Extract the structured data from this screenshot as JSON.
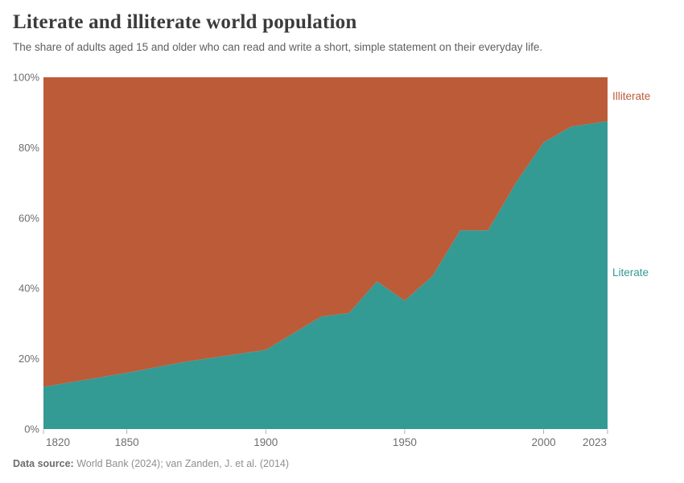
{
  "header": {
    "title": "Literate and illiterate world population",
    "subtitle": "The share of adults aged 15 and older who can read and write a short, simple statement on their everyday life."
  },
  "legend": {
    "illiterate_label": "Illiterate",
    "literate_label": "Literate"
  },
  "footer": {
    "source_label": "Data source:",
    "source_text": " World Bank (2024); van Zanden, J. et al. (2014)"
  },
  "colors": {
    "literate_fill": "#349a94",
    "illiterate_fill": "#bc5b38",
    "axis_text": "#6e6e6e",
    "tick_mark": "#b0b0b0",
    "title_text": "#3b3b3b",
    "subtitle_text": "#5f5f5f"
  },
  "chart_data": {
    "type": "area",
    "stacked": true,
    "title": "Literate and illiterate world population",
    "xlabel": "",
    "ylabel": "",
    "xlim": [
      1820,
      2023
    ],
    "ylim": [
      0,
      100
    ],
    "grid": false,
    "legend_position": "right-inline",
    "x": [
      1820,
      1850,
      1870,
      1900,
      1920,
      1930,
      1940,
      1950,
      1960,
      1970,
      1980,
      1990,
      2000,
      2010,
      2023
    ],
    "series": [
      {
        "name": "Literate",
        "color": "#349a94",
        "values": [
          12,
          16,
          19,
          22.5,
          32,
          33,
          42,
          36.5,
          43.5,
          56.5,
          56.5,
          70,
          81.5,
          86,
          87.5
        ]
      },
      {
        "name": "Illiterate",
        "color": "#bc5b38",
        "values": [
          88,
          84,
          81,
          77.5,
          68,
          67,
          58,
          63.5,
          56.5,
          43.5,
          43.5,
          30,
          18.5,
          14,
          12.5
        ]
      }
    ],
    "x_ticks": [
      1820,
      1850,
      1900,
      1950,
      2000,
      2023
    ],
    "y_ticks": [
      0,
      20,
      40,
      60,
      80,
      100
    ],
    "y_tick_suffix": "%"
  }
}
